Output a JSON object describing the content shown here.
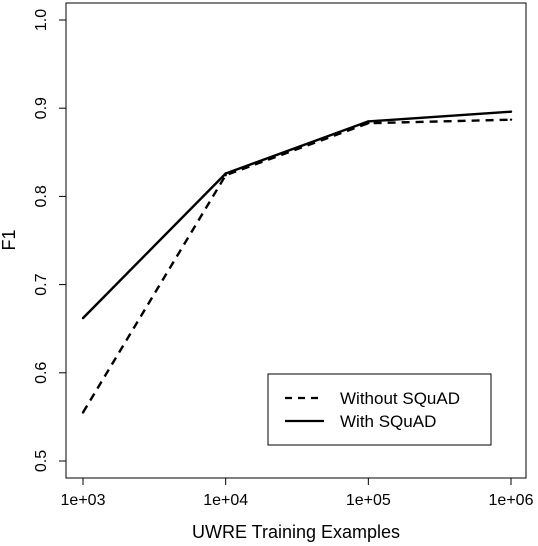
{
  "chart_data": {
    "type": "line",
    "xlabel": "UWRE Training Examples",
    "ylabel": "F1",
    "x_scale": "log",
    "x": [
      1000,
      10000,
      100000,
      1000000
    ],
    "x_tick_labels": [
      "1e+03",
      "1e+04",
      "1e+05",
      "1e+06"
    ],
    "y_ticks": [
      0.5,
      0.6,
      0.7,
      0.8,
      0.9,
      1.0
    ],
    "y_tick_labels": [
      "0.5",
      "0.6",
      "0.7",
      "0.8",
      "0.9",
      "1.0"
    ],
    "xlim": [
      1000,
      1000000
    ],
    "ylim": [
      0.5,
      1.0
    ],
    "grid": false,
    "legend_position": "bottom-right",
    "series": [
      {
        "name": "Without SQuAD",
        "style": "dashed",
        "color": "#000000",
        "values": [
          0.555,
          0.824,
          0.883,
          0.887
        ]
      },
      {
        "name": "With SQuAD",
        "style": "solid",
        "color": "#000000",
        "values": [
          0.662,
          0.826,
          0.885,
          0.896
        ]
      }
    ]
  }
}
